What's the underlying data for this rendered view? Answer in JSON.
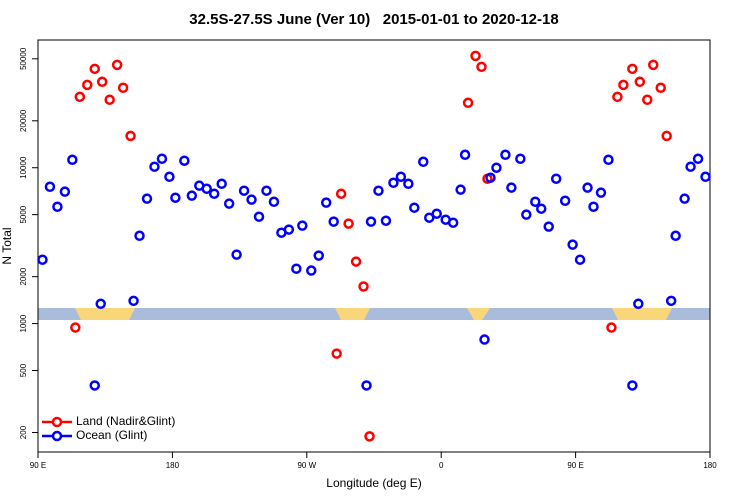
{
  "chart_data": {
    "type": "scatter",
    "title": "32.5S-27.5S June (Ver 10)   2015-01-01 to 2020-12-18",
    "x_label": "Longitude (deg E)",
    "y_label": "N Total",
    "log_y": true,
    "legend": "bottom-left",
    "xlim": [
      90,
      540
    ],
    "ylim": [
      150,
      66000
    ],
    "xticks": [
      {
        "value": 90,
        "label": "90 E"
      },
      {
        "value": 180,
        "label": "180"
      },
      {
        "value": 270,
        "label": "90 W"
      },
      {
        "value": 360,
        "label": "0"
      },
      {
        "value": 450,
        "label": "90 E"
      },
      {
        "value": 540,
        "label": "180"
      }
    ],
    "yticks": [
      200,
      500,
      1000,
      2000,
      5000,
      10000,
      20000,
      50000
    ],
    "series": [
      {
        "name": "Land (Nadir&Glint)",
        "color": "#ff0000",
        "x": [
          115,
          118,
          123,
          128,
          133,
          138,
          143,
          147,
          152,
          290,
          293,
          298,
          303,
          308,
          312,
          378,
          383,
          387,
          391,
          474,
          478,
          482,
          488,
          493,
          498,
          502,
          507,
          511
        ],
        "values": [
          943,
          28500,
          34000,
          43100,
          35600,
          27300,
          45700,
          32600,
          16000,
          642,
          6810,
          4380,
          2500,
          1730,
          189,
          26100,
          52200,
          44400,
          8500,
          943,
          28500,
          34000,
          43100,
          35600,
          27300,
          45700,
          32600,
          16000
        ]
      },
      {
        "name": "Ocean (Glint)",
        "color": "#0000ff",
        "x": [
          93,
          98,
          103,
          108,
          113,
          128,
          132,
          154,
          158,
          163,
          168,
          173,
          178,
          182,
          188,
          193,
          198,
          203,
          208,
          213,
          218,
          223,
          228,
          233,
          238,
          243,
          248,
          253,
          258,
          263,
          267,
          273,
          278,
          283,
          288,
          310,
          313,
          318,
          323,
          328,
          333,
          338,
          342,
          348,
          352,
          357,
          363,
          368,
          373,
          376,
          389,
          393,
          397,
          403,
          407,
          413,
          417,
          423,
          427,
          432,
          437,
          443,
          448,
          453,
          458,
          462,
          467,
          472,
          488,
          492,
          514,
          517,
          523,
          527,
          532,
          537
        ],
        "values": [
          2570,
          7550,
          5620,
          7020,
          11250,
          401,
          1340,
          1400,
          3660,
          6330,
          10150,
          11420,
          8750,
          6420,
          11090,
          6620,
          7670,
          7330,
          6810,
          7890,
          5880,
          2770,
          7120,
          6240,
          4850,
          7120,
          6050,
          3830,
          4010,
          2250,
          4250,
          2190,
          2730,
          5970,
          4510,
          401,
          4510,
          7120,
          4570,
          8010,
          8750,
          7890,
          5540,
          10920,
          4780,
          5070,
          4640,
          4440,
          7230,
          12110,
          790,
          8630,
          10000,
          12110,
          7450,
          11420,
          5000,
          6050,
          5460,
          4190,
          8500,
          6140,
          3210,
          2570,
          7450,
          5620,
          6920,
          11250,
          401,
          1340,
          1400,
          3660,
          6330,
          10150,
          11420,
          8750
        ]
      }
    ]
  }
}
